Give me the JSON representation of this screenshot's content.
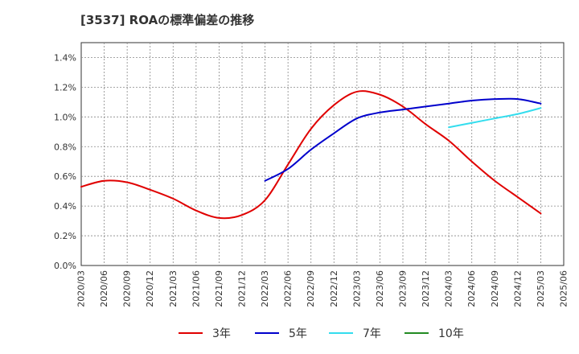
{
  "chart_data": {
    "type": "line",
    "title": "[3537]  ROAの標準偏差の推移",
    "xlabel": "",
    "ylabel": "",
    "ylim": [
      0,
      1.5
    ],
    "yticks": [
      "0.0%",
      "0.2%",
      "0.4%",
      "0.6%",
      "0.8%",
      "1.0%",
      "1.2%",
      "1.4%"
    ],
    "categories": [
      "2020/03",
      "2020/06",
      "2020/09",
      "2020/12",
      "2021/03",
      "2021/06",
      "2021/09",
      "2021/12",
      "2022/03",
      "2022/06",
      "2022/09",
      "2022/12",
      "2023/03",
      "2023/06",
      "2023/09",
      "2023/12",
      "2024/03",
      "2024/06",
      "2024/09",
      "2024/12",
      "2025/03",
      "2025/06"
    ],
    "grid": true,
    "legend_position": "bottom",
    "series": [
      {
        "name": "3年",
        "color": "#e00000",
        "values": [
          0.53,
          0.57,
          0.56,
          0.51,
          0.45,
          0.37,
          0.32,
          0.34,
          0.44,
          0.68,
          0.92,
          1.08,
          1.17,
          1.15,
          1.07,
          0.95,
          0.84,
          0.7,
          0.57,
          0.46,
          0.35,
          null
        ]
      },
      {
        "name": "5年",
        "color": "#0000cc",
        "values": [
          null,
          null,
          null,
          null,
          null,
          null,
          null,
          null,
          0.57,
          0.65,
          0.78,
          0.89,
          0.99,
          1.03,
          1.05,
          1.07,
          1.09,
          1.11,
          1.12,
          1.12,
          1.09,
          null
        ]
      },
      {
        "name": "7年",
        "color": "#33ddee",
        "values": [
          null,
          null,
          null,
          null,
          null,
          null,
          null,
          null,
          null,
          null,
          null,
          null,
          null,
          null,
          null,
          null,
          0.93,
          0.96,
          0.99,
          1.02,
          1.06,
          null
        ]
      },
      {
        "name": "10年",
        "color": "#228b22",
        "values": [
          null,
          null,
          null,
          null,
          null,
          null,
          null,
          null,
          null,
          null,
          null,
          null,
          null,
          null,
          null,
          null,
          null,
          null,
          null,
          null,
          null,
          null
        ]
      }
    ]
  }
}
